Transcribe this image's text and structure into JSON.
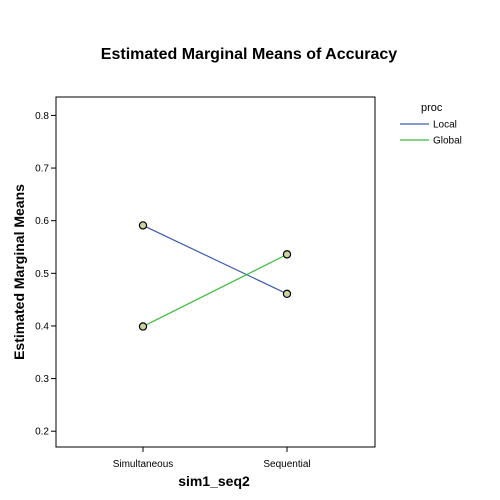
{
  "chart_data": {
    "type": "line",
    "title": "Estimated Marginal Means of Accuracy",
    "xlabel": "sim1_seq2",
    "ylabel": "Estimated Marginal Means",
    "categories": [
      "Simultaneous",
      "Sequential"
    ],
    "ylim": [
      0.17,
      0.835
    ],
    "yticks": [
      0.2,
      0.3,
      0.4,
      0.5,
      0.6,
      0.7,
      0.8
    ],
    "ytick_labels": [
      "0.2",
      "0.3",
      "0.4",
      "0.5",
      "0.6",
      "0.7",
      "0.8"
    ],
    "grid": false,
    "legend_title": "proc",
    "legend_position": "top-right outside",
    "series": [
      {
        "name": "Local",
        "color": "#3c5cab",
        "values": [
          0.591,
          0.461
        ]
      },
      {
        "name": "Global",
        "color": "#3fb93f",
        "values": [
          0.399,
          0.536
        ]
      }
    ],
    "marker_fill": "#c8d4a0",
    "marker_stroke": "#000000"
  }
}
